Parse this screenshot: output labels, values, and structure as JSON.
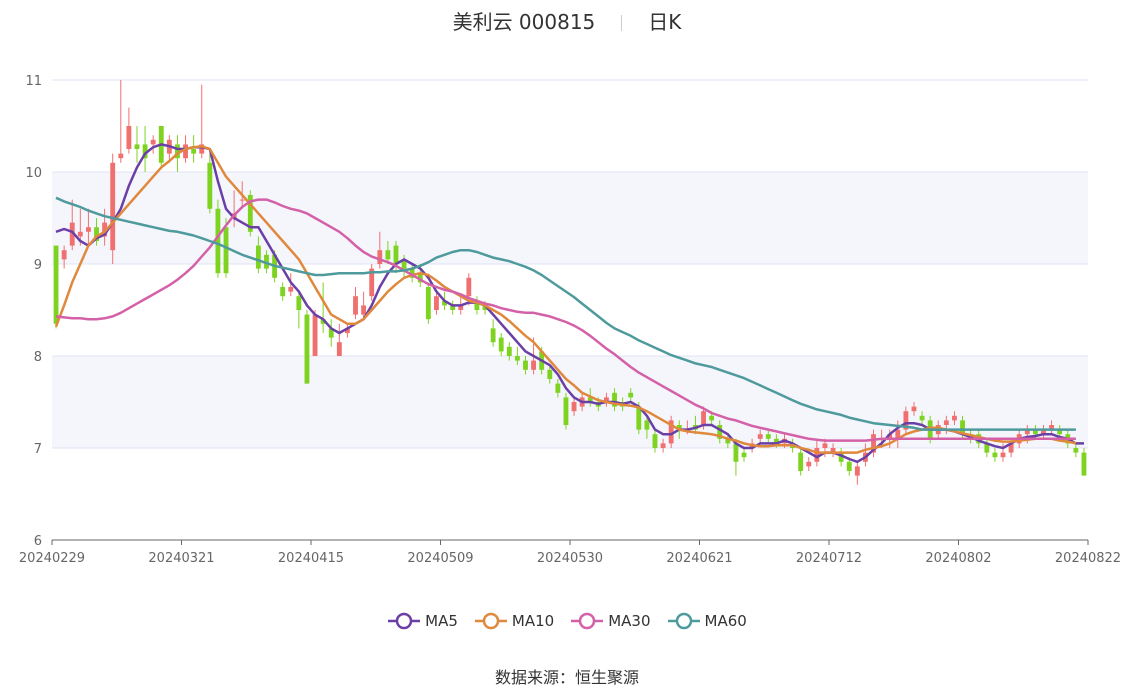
{
  "title": {
    "stock": "美利云 000815",
    "period": "日K"
  },
  "source": {
    "label": "数据来源：",
    "value": "恒生聚源"
  },
  "chart_data": {
    "type": "candlestick",
    "ylim": [
      6,
      11
    ],
    "y_ticks": [
      6,
      7,
      8,
      9,
      10,
      11
    ],
    "x_tick_labels": [
      "20240229",
      "20240321",
      "20240415",
      "20240509",
      "20240530",
      "20240621",
      "20240712",
      "20240802",
      "20240822"
    ],
    "grid": true,
    "legend_position": "bottom-center",
    "colors": {
      "up": "#f07070",
      "down": "#7ed321",
      "grid": "#dfe4f3",
      "band": "#f4f6fc"
    },
    "candles": [
      [
        9.2,
        8.35,
        9.2,
        8.3
      ],
      [
        9.05,
        9.15,
        9.2,
        8.95
      ],
      [
        9.2,
        9.45,
        9.7,
        9.15
      ],
      [
        9.3,
        9.35,
        9.6,
        9.2
      ],
      [
        9.35,
        9.4,
        9.6,
        9.2
      ],
      [
        9.4,
        9.25,
        9.5,
        9.2
      ],
      [
        9.3,
        9.45,
        9.6,
        9.2
      ],
      [
        9.15,
        10.1,
        10.2,
        9.0
      ],
      [
        10.15,
        10.2,
        11.0,
        10.1
      ],
      [
        10.25,
        10.5,
        10.7,
        10.2
      ],
      [
        10.3,
        10.25,
        10.5,
        10.1
      ],
      [
        10.3,
        10.15,
        10.5,
        10.0
      ],
      [
        10.3,
        10.35,
        10.4,
        10.2
      ],
      [
        10.5,
        10.1,
        10.5,
        10.05
      ],
      [
        10.2,
        10.35,
        10.4,
        10.1
      ],
      [
        10.3,
        10.15,
        10.4,
        10.0
      ],
      [
        10.15,
        10.3,
        10.4,
        10.1
      ],
      [
        10.25,
        10.2,
        10.4,
        10.1
      ],
      [
        10.2,
        10.3,
        10.95,
        10.15
      ],
      [
        10.1,
        9.6,
        10.2,
        9.55
      ],
      [
        9.6,
        8.9,
        9.7,
        8.85
      ],
      [
        9.4,
        8.9,
        9.5,
        8.85
      ],
      [
        9.5,
        9.55,
        9.8,
        9.4
      ],
      [
        9.7,
        9.7,
        9.9,
        9.6
      ],
      [
        9.75,
        9.35,
        9.8,
        9.3
      ],
      [
        9.2,
        8.95,
        9.3,
        8.9
      ],
      [
        9.1,
        8.95,
        9.15,
        8.9
      ],
      [
        9.1,
        8.85,
        9.15,
        8.8
      ],
      [
        8.75,
        8.65,
        8.8,
        8.6
      ],
      [
        8.7,
        8.75,
        8.9,
        8.65
      ],
      [
        8.65,
        8.5,
        8.7,
        8.3
      ],
      [
        8.45,
        7.7,
        8.5,
        7.7
      ],
      [
        8.0,
        8.45,
        8.5,
        8.0
      ],
      [
        8.4,
        8.35,
        8.8,
        8.25
      ],
      [
        8.3,
        8.2,
        8.4,
        8.1
      ],
      [
        8.0,
        8.15,
        8.35,
        8.0
      ],
      [
        8.25,
        8.3,
        8.35,
        8.2
      ],
      [
        8.45,
        8.65,
        8.75,
        8.4
      ],
      [
        8.45,
        8.55,
        8.7,
        8.4
      ],
      [
        8.65,
        8.95,
        9.0,
        8.6
      ],
      [
        9.0,
        9.15,
        9.35,
        8.95
      ],
      [
        9.15,
        9.05,
        9.25,
        9.0
      ],
      [
        9.2,
        9.0,
        9.25,
        8.9
      ],
      [
        9.05,
        8.95,
        9.1,
        8.85
      ],
      [
        8.95,
        8.85,
        9.0,
        8.8
      ],
      [
        8.9,
        8.8,
        9.0,
        8.75
      ],
      [
        8.75,
        8.4,
        8.8,
        8.35
      ],
      [
        8.5,
        8.65,
        8.7,
        8.45
      ],
      [
        8.6,
        8.55,
        8.7,
        8.5
      ],
      [
        8.55,
        8.5,
        8.6,
        8.45
      ],
      [
        8.5,
        8.55,
        8.65,
        8.45
      ],
      [
        8.65,
        8.85,
        8.9,
        8.55
      ],
      [
        8.6,
        8.5,
        8.65,
        8.45
      ],
      [
        8.55,
        8.5,
        8.6,
        8.45
      ],
      [
        8.3,
        8.15,
        8.4,
        8.1
      ],
      [
        8.2,
        8.05,
        8.25,
        8.0
      ],
      [
        8.1,
        8.0,
        8.15,
        7.95
      ],
      [
        8.0,
        7.95,
        8.1,
        7.9
      ],
      [
        7.95,
        7.85,
        8.0,
        7.8
      ],
      [
        7.85,
        7.95,
        8.2,
        7.8
      ],
      [
        8.05,
        7.85,
        8.1,
        7.8
      ],
      [
        7.85,
        7.75,
        7.9,
        7.7
      ],
      [
        7.7,
        7.6,
        7.75,
        7.55
      ],
      [
        7.55,
        7.25,
        7.6,
        7.2
      ],
      [
        7.4,
        7.5,
        7.55,
        7.35
      ],
      [
        7.45,
        7.55,
        7.6,
        7.4
      ],
      [
        7.55,
        7.5,
        7.65,
        7.45
      ],
      [
        7.5,
        7.45,
        7.55,
        7.4
      ],
      [
        7.5,
        7.55,
        7.6,
        7.45
      ],
      [
        7.6,
        7.45,
        7.65,
        7.4
      ],
      [
        7.5,
        7.45,
        7.55,
        7.4
      ],
      [
        7.6,
        7.55,
        7.65,
        7.5
      ],
      [
        7.45,
        7.2,
        7.5,
        7.15
      ],
      [
        7.3,
        7.2,
        7.35,
        7.1
      ],
      [
        7.15,
        7.0,
        7.2,
        6.95
      ],
      [
        7.0,
        7.05,
        7.1,
        6.95
      ],
      [
        7.05,
        7.3,
        7.35,
        7.0
      ],
      [
        7.25,
        7.2,
        7.3,
        7.1
      ],
      [
        7.2,
        7.2,
        7.3,
        7.15
      ],
      [
        7.25,
        7.2,
        7.35,
        7.15
      ],
      [
        7.25,
        7.4,
        7.45,
        7.2
      ],
      [
        7.35,
        7.3,
        7.4,
        7.25
      ],
      [
        7.25,
        7.1,
        7.3,
        7.05
      ],
      [
        7.1,
        7.05,
        7.15,
        7.0
      ],
      [
        7.05,
        6.85,
        7.1,
        6.7
      ],
      [
        6.95,
        6.9,
        7.0,
        6.85
      ],
      [
        7.0,
        7.05,
        7.1,
        6.95
      ],
      [
        7.1,
        7.15,
        7.2,
        7.05
      ],
      [
        7.15,
        7.1,
        7.2,
        7.05
      ],
      [
        7.1,
        7.05,
        7.15,
        7.0
      ],
      [
        7.05,
        7.1,
        7.15,
        7.0
      ],
      [
        7.05,
        7.0,
        7.1,
        6.95
      ],
      [
        6.95,
        6.75,
        7.0,
        6.7
      ],
      [
        6.8,
        6.85,
        6.9,
        6.75
      ],
      [
        6.85,
        7.0,
        7.1,
        6.8
      ],
      [
        7.0,
        7.05,
        7.1,
        6.9
      ],
      [
        6.95,
        7.0,
        7.05,
        6.9
      ],
      [
        6.95,
        6.85,
        7.0,
        6.8
      ],
      [
        6.85,
        6.75,
        6.9,
        6.7
      ],
      [
        6.7,
        6.8,
        6.85,
        6.6
      ],
      [
        6.85,
        6.95,
        7.05,
        6.8
      ],
      [
        6.95,
        7.15,
        7.2,
        6.9
      ],
      [
        7.1,
        7.1,
        7.2,
        7.0
      ],
      [
        7.1,
        7.15,
        7.2,
        7.0
      ],
      [
        7.1,
        7.2,
        7.3,
        7.0
      ],
      [
        7.2,
        7.4,
        7.45,
        7.15
      ],
      [
        7.4,
        7.45,
        7.5,
        7.35
      ],
      [
        7.35,
        7.3,
        7.4,
        7.25
      ],
      [
        7.3,
        7.1,
        7.35,
        7.05
      ],
      [
        7.15,
        7.25,
        7.3,
        7.1
      ],
      [
        7.25,
        7.3,
        7.35,
        7.15
      ],
      [
        7.3,
        7.35,
        7.4,
        7.25
      ],
      [
        7.3,
        7.15,
        7.35,
        7.1
      ],
      [
        7.15,
        7.1,
        7.2,
        7.05
      ],
      [
        7.15,
        7.05,
        7.2,
        7.0
      ],
      [
        7.05,
        6.95,
        7.1,
        6.9
      ],
      [
        6.95,
        6.9,
        7.0,
        6.85
      ],
      [
        6.9,
        6.95,
        7.05,
        6.85
      ],
      [
        6.95,
        7.05,
        7.1,
        6.9
      ],
      [
        7.05,
        7.15,
        7.2,
        7.0
      ],
      [
        7.15,
        7.2,
        7.25,
        7.05
      ],
      [
        7.2,
        7.15,
        7.25,
        7.1
      ],
      [
        7.15,
        7.2,
        7.25,
        7.1
      ],
      [
        7.2,
        7.25,
        7.3,
        7.15
      ],
      [
        7.2,
        7.15,
        7.25,
        7.1
      ],
      [
        7.15,
        7.05,
        7.2,
        7.0
      ],
      [
        7.0,
        6.95,
        7.05,
        6.9
      ],
      [
        6.95,
        6.7,
        7.0,
        6.7
      ]
    ],
    "series": [
      {
        "name": "MA5",
        "color": "#6a3fa6",
        "values": [
          9.35,
          9.38,
          9.35,
          9.25,
          9.2,
          9.28,
          9.32,
          9.45,
          9.6,
          9.85,
          10.05,
          10.2,
          10.27,
          10.3,
          10.28,
          10.25,
          10.25,
          10.27,
          10.27,
          10.25,
          9.9,
          9.6,
          9.5,
          9.45,
          9.4,
          9.4,
          9.25,
          9.1,
          8.95,
          8.8,
          8.7,
          8.55,
          8.45,
          8.4,
          8.3,
          8.25,
          8.3,
          8.35,
          8.4,
          8.55,
          8.75,
          8.9,
          9.0,
          9.05,
          9.0,
          8.95,
          8.85,
          8.7,
          8.6,
          8.55,
          8.55,
          8.58,
          8.58,
          8.55,
          8.45,
          8.35,
          8.25,
          8.15,
          8.05,
          8.0,
          7.95,
          7.9,
          7.8,
          7.65,
          7.55,
          7.5,
          7.5,
          7.48,
          7.5,
          7.5,
          7.48,
          7.5,
          7.45,
          7.35,
          7.2,
          7.15,
          7.15,
          7.2,
          7.2,
          7.22,
          7.25,
          7.25,
          7.2,
          7.15,
          7.05,
          7.0,
          7.0,
          7.05,
          7.05,
          7.05,
          7.08,
          7.05,
          7.0,
          6.95,
          6.9,
          6.95,
          6.95,
          6.92,
          6.88,
          6.85,
          6.9,
          6.98,
          7.05,
          7.15,
          7.22,
          7.27,
          7.27,
          7.25,
          7.2,
          7.2,
          7.2,
          7.18,
          7.15,
          7.12,
          7.08,
          7.05,
          7.02,
          7.0,
          7.05,
          7.1,
          7.12,
          7.13,
          7.15,
          7.15,
          7.12,
          7.1,
          7.05,
          7.05
        ]
      },
      {
        "name": "MA10",
        "color": "#e0883c",
        "values": [
          8.32,
          8.55,
          8.8,
          9.0,
          9.2,
          9.3,
          9.35,
          9.45,
          9.55,
          9.65,
          9.75,
          9.85,
          9.95,
          10.05,
          10.12,
          10.2,
          10.25,
          10.27,
          10.28,
          10.25,
          10.1,
          9.95,
          9.85,
          9.75,
          9.65,
          9.55,
          9.45,
          9.35,
          9.25,
          9.15,
          9.05,
          8.9,
          8.75,
          8.6,
          8.45,
          8.4,
          8.35,
          8.35,
          8.4,
          8.5,
          8.6,
          8.7,
          8.78,
          8.85,
          8.88,
          8.9,
          8.88,
          8.82,
          8.75,
          8.7,
          8.65,
          8.6,
          8.58,
          8.55,
          8.5,
          8.45,
          8.38,
          8.3,
          8.22,
          8.15,
          8.05,
          7.95,
          7.85,
          7.75,
          7.68,
          7.6,
          7.56,
          7.52,
          7.5,
          7.48,
          7.47,
          7.46,
          7.44,
          7.4,
          7.35,
          7.3,
          7.25,
          7.2,
          7.18,
          7.17,
          7.16,
          7.15,
          7.13,
          7.1,
          7.08,
          7.05,
          7.03,
          7.02,
          7.02,
          7.03,
          7.03,
          7.03,
          7.0,
          6.98,
          6.95,
          6.95,
          6.95,
          6.95,
          6.95,
          6.95,
          6.98,
          7.0,
          7.02,
          7.05,
          7.1,
          7.15,
          7.18,
          7.2,
          7.22,
          7.22,
          7.2,
          7.18,
          7.16,
          7.14,
          7.12,
          7.1,
          7.08,
          7.07,
          7.07,
          7.08,
          7.09,
          7.1,
          7.1,
          7.1,
          7.08,
          7.07,
          7.05
        ]
      },
      {
        "name": "MA30",
        "color": "#d461a8",
        "values": [
          8.43,
          8.42,
          8.41,
          8.41,
          8.4,
          8.4,
          8.41,
          8.43,
          8.47,
          8.52,
          8.57,
          8.62,
          8.67,
          8.72,
          8.77,
          8.83,
          8.9,
          8.98,
          9.08,
          9.18,
          9.3,
          9.42,
          9.53,
          9.62,
          9.68,
          9.7,
          9.7,
          9.67,
          9.63,
          9.6,
          9.58,
          9.55,
          9.5,
          9.45,
          9.4,
          9.35,
          9.28,
          9.2,
          9.13,
          9.08,
          9.05,
          9.02,
          8.98,
          8.93,
          8.88,
          8.83,
          8.78,
          8.75,
          8.72,
          8.7,
          8.67,
          8.63,
          8.6,
          8.57,
          8.55,
          8.52,
          8.5,
          8.48,
          8.47,
          8.47,
          8.45,
          8.43,
          8.4,
          8.37,
          8.33,
          8.28,
          8.22,
          8.15,
          8.08,
          8.02,
          7.95,
          7.88,
          7.82,
          7.77,
          7.72,
          7.67,
          7.62,
          7.57,
          7.52,
          7.47,
          7.43,
          7.38,
          7.35,
          7.32,
          7.3,
          7.27,
          7.24,
          7.22,
          7.2,
          7.18,
          7.16,
          7.14,
          7.12,
          7.1,
          7.09,
          7.08,
          7.08,
          7.08,
          7.08,
          7.08,
          7.08,
          7.09,
          7.1,
          7.1,
          7.1,
          7.1,
          7.1,
          7.1,
          7.1,
          7.1,
          7.1,
          7.1,
          7.1,
          7.1,
          7.1,
          7.1,
          7.1,
          7.1,
          7.1,
          7.1,
          7.1,
          7.1,
          7.1,
          7.1,
          7.1,
          7.1,
          7.1
        ]
      },
      {
        "name": "MA60",
        "color": "#4e9a9c",
        "values": [
          9.72,
          9.68,
          9.65,
          9.62,
          9.58,
          9.55,
          9.52,
          9.5,
          9.48,
          9.46,
          9.44,
          9.42,
          9.4,
          9.38,
          9.36,
          9.35,
          9.33,
          9.31,
          9.28,
          9.25,
          9.22,
          9.18,
          9.14,
          9.1,
          9.07,
          9.04,
          9.01,
          8.98,
          8.96,
          8.94,
          8.92,
          8.9,
          8.88,
          8.88,
          8.89,
          8.9,
          8.9,
          8.9,
          8.9,
          8.91,
          8.91,
          8.92,
          8.92,
          8.93,
          8.95,
          8.98,
          9.02,
          9.07,
          9.1,
          9.13,
          9.15,
          9.15,
          9.13,
          9.1,
          9.07,
          9.05,
          9.03,
          9.0,
          8.97,
          8.93,
          8.88,
          8.82,
          8.76,
          8.7,
          8.64,
          8.57,
          8.5,
          8.43,
          8.36,
          8.3,
          8.26,
          8.22,
          8.17,
          8.13,
          8.09,
          8.05,
          8.01,
          7.98,
          7.95,
          7.92,
          7.9,
          7.88,
          7.85,
          7.82,
          7.79,
          7.76,
          7.72,
          7.68,
          7.64,
          7.6,
          7.56,
          7.52,
          7.48,
          7.45,
          7.42,
          7.4,
          7.38,
          7.36,
          7.33,
          7.31,
          7.29,
          7.27,
          7.26,
          7.25,
          7.24,
          7.23,
          7.22,
          7.2,
          7.2,
          7.2,
          7.2,
          7.2,
          7.2,
          7.2,
          7.2,
          7.2,
          7.2,
          7.2,
          7.2,
          7.2,
          7.2,
          7.2,
          7.2,
          7.2,
          7.2,
          7.2,
          7.2
        ]
      }
    ]
  }
}
